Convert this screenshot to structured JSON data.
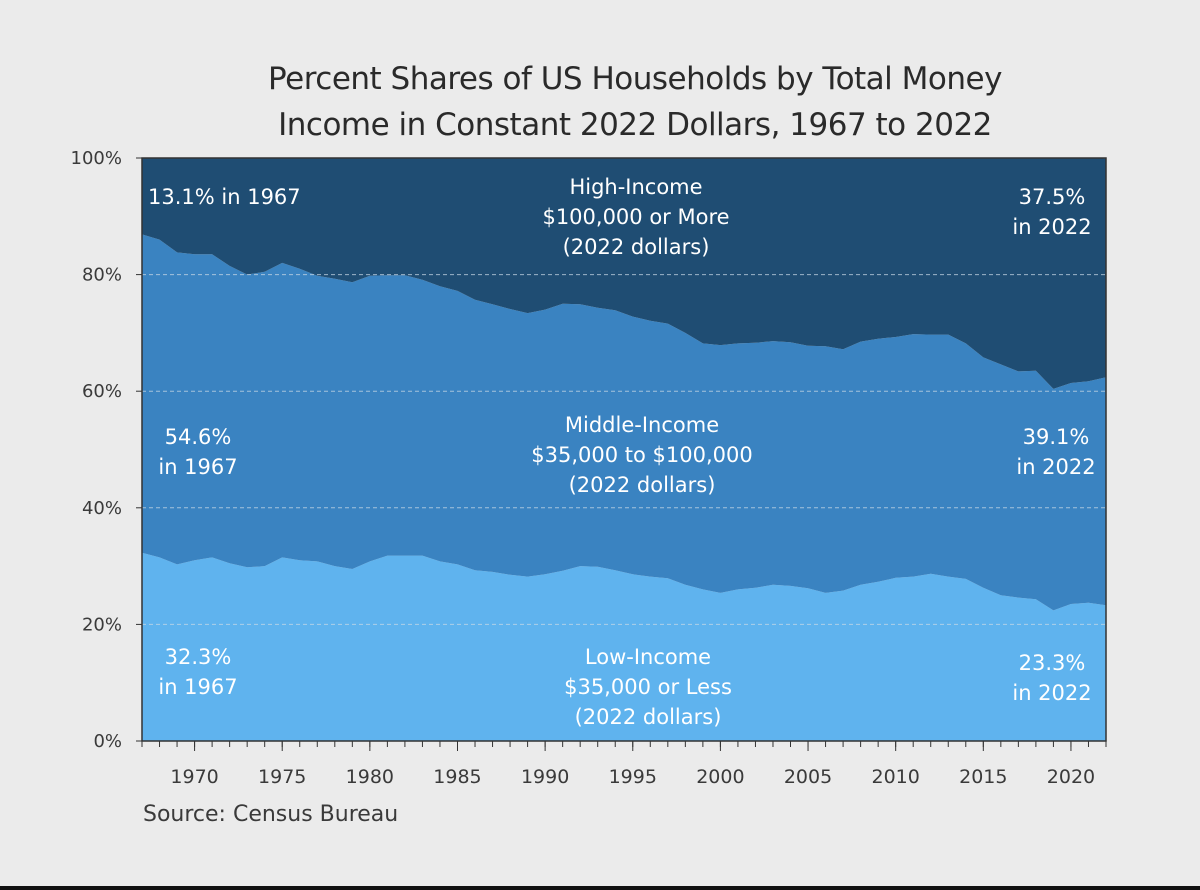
{
  "title_lines": [
    "Percent Shares of US Households by Total Money",
    "Income in Constant 2022 Dollars, 1967 to 2022"
  ],
  "source": "Source: Census Bureau",
  "colors": {
    "low": "#5fb3ee",
    "middle": "#3a83c1",
    "high": "#1f4d73",
    "grid": "#c9d9e6",
    "axis": "#333333"
  },
  "chart_data": {
    "type": "area",
    "stacked": true,
    "x_range": [
      1967,
      2022
    ],
    "ylim": [
      0,
      100
    ],
    "y_tick_labels": [
      "0%",
      "20%",
      "40%",
      "60%",
      "80%",
      "100%"
    ],
    "y_tick_values": [
      0,
      20,
      40,
      60,
      80,
      100
    ],
    "x_tick_labels": [
      "1970",
      "1975",
      "1980",
      "1985",
      "1990",
      "1995",
      "2000",
      "2005",
      "2010",
      "2015",
      "2020"
    ],
    "x_tick_values": [
      1970,
      1975,
      1980,
      1985,
      1990,
      1995,
      2000,
      2005,
      2010,
      2015,
      2020
    ],
    "grid": "horizontal dashed",
    "x": [
      1967,
      1968,
      1969,
      1970,
      1971,
      1972,
      1973,
      1974,
      1975,
      1976,
      1977,
      1978,
      1979,
      1980,
      1981,
      1982,
      1983,
      1984,
      1985,
      1986,
      1987,
      1988,
      1989,
      1990,
      1991,
      1992,
      1993,
      1994,
      1995,
      1996,
      1997,
      1998,
      1999,
      2000,
      2001,
      2002,
      2003,
      2004,
      2005,
      2006,
      2007,
      2008,
      2009,
      2010,
      2011,
      2012,
      2013,
      2014,
      2015,
      2016,
      2017,
      2018,
      2019,
      2020,
      2021,
      2022
    ],
    "series": [
      {
        "key": "low",
        "values": [
          32.3,
          31.5,
          30.3,
          31.0,
          31.5,
          30.5,
          29.8,
          30.0,
          31.5,
          31.0,
          30.8,
          30.0,
          29.5,
          30.8,
          31.8,
          31.8,
          31.8,
          30.8,
          30.3,
          29.3,
          29.0,
          28.5,
          28.2,
          28.6,
          29.2,
          30.0,
          29.9,
          29.3,
          28.6,
          28.2,
          27.9,
          26.8,
          26.0,
          25.4,
          26.0,
          26.3,
          26.8,
          26.6,
          26.2,
          25.4,
          25.8,
          26.8,
          27.3,
          28.0,
          28.2,
          28.7,
          28.2,
          27.8,
          26.3,
          25.0,
          24.6,
          24.3,
          22.4,
          23.5,
          23.7,
          23.3
        ]
      },
      {
        "key": "middle",
        "values": [
          54.6,
          54.5,
          53.5,
          52.5,
          52.0,
          51.0,
          50.2,
          50.5,
          50.5,
          50.0,
          49.0,
          49.3,
          49.2,
          49.0,
          48.1,
          48.1,
          47.3,
          47.2,
          46.9,
          46.4,
          45.9,
          45.6,
          45.2,
          45.4,
          45.8,
          44.9,
          44.4,
          44.6,
          44.2,
          43.9,
          43.7,
          43.2,
          42.2,
          42.5,
          42.2,
          42.0,
          41.8,
          41.8,
          41.6,
          42.3,
          41.4,
          41.7,
          41.7,
          41.3,
          41.6,
          41.0,
          41.5,
          40.4,
          39.5,
          39.6,
          38.8,
          39.2,
          38.0,
          37.9,
          38.0,
          39.1
        ]
      },
      {
        "key": "high",
        "values": [
          13.1,
          14.0,
          16.2,
          16.5,
          16.5,
          18.5,
          20.0,
          19.5,
          18.0,
          19.0,
          20.2,
          20.7,
          21.3,
          20.2,
          20.1,
          20.1,
          20.9,
          22.0,
          22.8,
          24.3,
          25.1,
          25.9,
          26.6,
          26.0,
          25.0,
          25.1,
          25.7,
          26.1,
          27.2,
          27.9,
          28.4,
          30.0,
          31.8,
          32.1,
          31.8,
          31.7,
          31.4,
          31.6,
          32.2,
          32.3,
          32.8,
          31.5,
          31.0,
          30.7,
          30.2,
          30.3,
          30.3,
          31.8,
          34.2,
          35.4,
          36.6,
          36.5,
          39.6,
          38.6,
          38.3,
          37.5
        ]
      }
    ],
    "annotations": {
      "high_center": [
        "High-Income",
        "$100,000 or More",
        "(2022 dollars)"
      ],
      "high_left": [
        "13.1% in 1967"
      ],
      "high_right": [
        "37.5%",
        "in 2022"
      ],
      "middle_center": [
        "Middle-Income",
        "$35,000 to $100,000",
        "(2022 dollars)"
      ],
      "middle_left": [
        "54.6%",
        "in 1967"
      ],
      "middle_right": [
        "39.1%",
        "in 2022"
      ],
      "low_center": [
        "Low-Income",
        "$35,000 or Less",
        "(2022 dollars)"
      ],
      "low_left": [
        "32.3%",
        "in 1967"
      ],
      "low_right": [
        "23.3%",
        "in 2022"
      ]
    }
  }
}
